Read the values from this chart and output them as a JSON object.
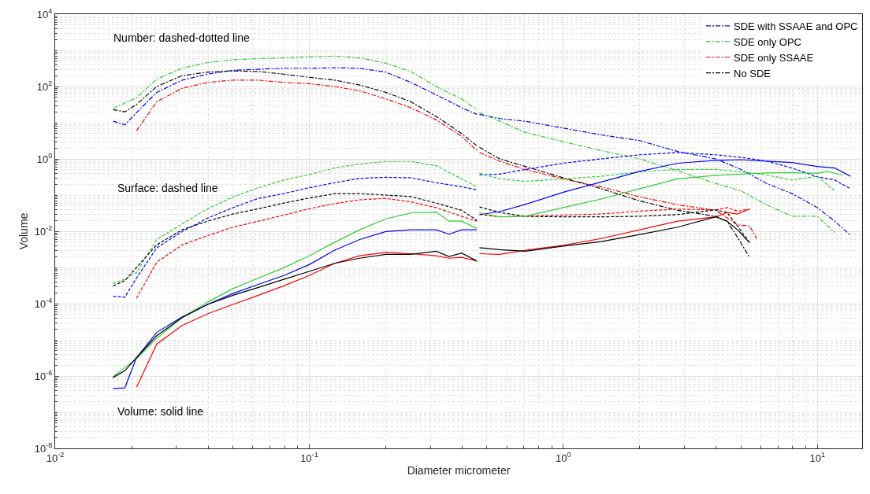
{
  "chart_data": {
    "type": "line",
    "xlabel": "Diameter micrometer",
    "ylabel": "Volume",
    "log": "xy",
    "grid": true,
    "legend": "top right",
    "xlim": [
      0.01,
      15
    ],
    "xticks": [
      {
        "value": 0.01,
        "label": "10$^{-2}$"
      },
      {
        "value": 0.1,
        "label": "10$^{-1}$"
      },
      {
        "value": 1,
        "label": "10$^{0}$"
      },
      {
        "value": 10,
        "label": "10$^{1}$"
      }
    ],
    "ylim": [
      1e-08,
      10000
    ],
    "yticks": [
      {
        "value": 1e-08,
        "label": "10$^{-8}$"
      },
      {
        "value": 1e-06,
        "label": "10$^{-6}$"
      },
      {
        "value": 0.0001,
        "label": "10$^{-4}$"
      },
      {
        "value": 0.01,
        "label": "10$^{-2}$"
      },
      {
        "value": 1,
        "label": "10$^{0}$"
      },
      {
        "value": 100,
        "label": "10$^{2}$"
      },
      {
        "value": 10000,
        "label": "10$^{4}$"
      }
    ],
    "annotations": [
      "Number: dashed-dotted line",
      "Surface: dashed line",
      "Volume: solid line"
    ],
    "series": [
      {
        "name": "SDE with SSAAE and OPC",
        "color": "#0000ff",
        "line_style": "dashdot",
        "x": [
          0.0169,
          0.0188,
          0.0209,
          0.0251,
          0.0316,
          0.0398,
          0.0501,
          0.0631,
          0.0794,
          0.1,
          0.126,
          0.158,
          0.2,
          0.251,
          0.316,
          0.398,
          0.457,
          null,
          0.468,
          0.562,
          0.708,
          1,
          1.41,
          2,
          2.82,
          3.98,
          5.01,
          6.31,
          7.94,
          10,
          11.7,
          13.5
        ],
        "values": [
          11,
          8.7,
          19,
          69,
          150,
          220,
          280,
          300,
          320,
          320,
          330,
          320,
          250,
          130,
          59,
          26,
          17,
          null,
          17,
          13,
          11,
          7.1,
          4.6,
          3.2,
          1.6,
          1.0,
          0.51,
          0.21,
          0.11,
          0.045,
          0.019,
          0.0078
        ]
      },
      {
        "name": "SDE only OPC",
        "color": "#33cc33",
        "line_style": "dashdot",
        "x": [
          0.0169,
          0.0188,
          0.0209,
          0.0251,
          0.0316,
          0.0398,
          0.0501,
          0.0631,
          0.0794,
          0.1,
          0.126,
          0.158,
          0.2,
          0.251,
          0.316,
          0.398,
          0.457,
          null,
          0.468,
          0.562,
          0.708,
          1,
          1.41,
          2,
          2.82,
          3.98,
          5.01,
          6.31,
          7.94,
          10,
          11.7
        ],
        "values": [
          25,
          35,
          49,
          160,
          320,
          460,
          550,
          590,
          620,
          660,
          690,
          620,
          440,
          260,
          100,
          45,
          23,
          null,
          19,
          11,
          5.4,
          3.0,
          1.7,
          1.0,
          0.47,
          0.21,
          0.13,
          0.054,
          0.026,
          0.026,
          0.0093
        ]
      },
      {
        "name": "SDE only SSAAE",
        "color": "#ff0000",
        "line_style": "dashdot",
        "x": [
          0.0209,
          0.0251,
          0.0316,
          0.0398,
          0.0501,
          0.0631,
          0.0794,
          0.1,
          0.126,
          0.158,
          0.2,
          0.251,
          0.316,
          0.398,
          0.457,
          null,
          0.468,
          0.562,
          0.708,
          1,
          1.41,
          2,
          2.82,
          3.98,
          4.85,
          5.41,
          5.78
        ],
        "values": [
          6.0,
          38,
          89,
          130,
          150,
          150,
          130,
          120,
          100,
          76,
          46,
          26,
          12,
          4.2,
          1.7,
          null,
          1.5,
          0.87,
          0.51,
          0.28,
          0.17,
          0.089,
          0.054,
          0.038,
          0.015,
          0.014,
          0.0063
        ]
      },
      {
        "name": "No SDE",
        "color": "#000000",
        "line_style": "dashdot",
        "x": [
          0.0169,
          0.0188,
          0.0209,
          0.0251,
          0.0316,
          0.0398,
          0.0501,
          0.0631,
          0.0794,
          0.1,
          0.126,
          0.158,
          0.2,
          0.251,
          0.316,
          0.398,
          0.457,
          null,
          0.468,
          0.562,
          0.708,
          1,
          1.41,
          2,
          2.82,
          3.98,
          4.41,
          4.85,
          5.41
        ],
        "values": [
          23,
          20,
          32,
          100,
          200,
          250,
          270,
          260,
          220,
          180,
          150,
          110,
          69,
          38,
          15,
          5.0,
          2.3,
          null,
          2.1,
          1.0,
          0.62,
          0.3,
          0.15,
          0.069,
          0.038,
          0.026,
          0.019,
          0.0068,
          0.0019
        ]
      },
      {
        "color": "#0000ff",
        "line_style": "dashed",
        "x": [
          0.0169,
          0.0188,
          0.0209,
          0.0251,
          0.0316,
          0.0398,
          0.0501,
          0.0631,
          0.0794,
          0.1,
          0.126,
          0.158,
          0.2,
          0.251,
          0.316,
          0.398,
          0.457,
          null,
          0.468,
          0.562,
          0.708,
          1,
          1.41,
          2,
          2.82,
          3.98,
          5.01,
          6.31,
          7.94,
          10,
          11.7,
          13.5
        ],
        "values": [
          0.00016,
          0.00015,
          0.00051,
          0.0035,
          0.0098,
          0.023,
          0.045,
          0.081,
          0.11,
          0.16,
          0.22,
          0.29,
          0.31,
          0.3,
          0.22,
          0.17,
          0.14,
          null,
          0.36,
          0.38,
          0.51,
          0.76,
          1.0,
          1.3,
          1.5,
          1.3,
          1.1,
          0.87,
          0.56,
          0.32,
          0.26,
          0.15
        ]
      },
      {
        "color": "#33cc33",
        "line_style": "dashed",
        "x": [
          0.0169,
          0.0188,
          0.0209,
          0.0251,
          0.0316,
          0.0398,
          0.0501,
          0.0631,
          0.0794,
          0.1,
          0.126,
          0.158,
          0.2,
          0.251,
          0.316,
          0.398,
          0.457,
          null,
          0.468,
          0.562,
          0.708,
          1,
          1.41,
          2,
          2.82,
          3.98,
          5.01,
          6.31,
          7.94,
          10,
          11.7
        ],
        "values": [
          0.00036,
          0.00047,
          0.00072,
          0.0059,
          0.016,
          0.042,
          0.089,
          0.16,
          0.26,
          0.37,
          0.56,
          0.72,
          0.85,
          0.85,
          0.65,
          0.28,
          0.17,
          null,
          0.4,
          0.28,
          0.24,
          0.28,
          0.33,
          0.44,
          0.51,
          0.51,
          0.44,
          0.36,
          0.26,
          0.33,
          0.13
        ]
      },
      {
        "color": "#ff0000",
        "line_style": "dashed",
        "x": [
          0.0209,
          0.0251,
          0.0316,
          0.0398,
          0.0501,
          0.0631,
          0.0794,
          0.1,
          0.126,
          0.158,
          0.2,
          0.251,
          0.316,
          0.398,
          0.457,
          null,
          0.468,
          0.562,
          0.708,
          1,
          1.41,
          2,
          2.82,
          3.98,
          4.41,
          4.85,
          5.41
        ],
        "values": [
          0.00014,
          0.0014,
          0.0042,
          0.0076,
          0.013,
          0.019,
          0.028,
          0.042,
          0.058,
          0.074,
          0.081,
          0.065,
          0.045,
          0.026,
          0.019,
          null,
          0.029,
          0.025,
          0.026,
          0.028,
          0.03,
          0.036,
          0.041,
          0.039,
          0.045,
          0.036,
          0.041
        ]
      },
      {
        "color": "#000000",
        "line_style": "dashed",
        "x": [
          0.0169,
          0.0188,
          0.0209,
          0.0251,
          0.0316,
          0.0398,
          0.0501,
          0.0631,
          0.0794,
          0.1,
          0.126,
          0.158,
          0.2,
          0.251,
          0.316,
          0.398,
          0.457,
          null,
          0.468,
          0.562,
          0.708,
          1,
          1.41,
          2,
          2.82,
          3.98,
          4.41,
          4.85,
          5.41
        ],
        "values": [
          0.00031,
          0.00043,
          0.001,
          0.0042,
          0.011,
          0.019,
          0.03,
          0.042,
          0.06,
          0.083,
          0.11,
          0.11,
          0.1,
          0.091,
          0.06,
          0.038,
          0.02,
          null,
          0.047,
          0.033,
          0.026,
          0.025,
          0.025,
          0.026,
          0.029,
          0.039,
          0.033,
          0.014,
          0.0048
        ]
      },
      {
        "color": "#0000ff",
        "line_style": "solid",
        "x": [
          0.0169,
          0.0188,
          0.0209,
          0.0251,
          0.0316,
          0.0398,
          0.0501,
          0.0631,
          0.0794,
          0.1,
          0.126,
          0.158,
          0.2,
          0.251,
          0.316,
          0.355,
          0.398,
          0.457,
          null,
          0.468,
          0.562,
          0.708,
          1,
          1.41,
          2,
          2.82,
          3.98,
          5.01,
          6.31,
          7.94,
          10,
          11.7,
          13.5
        ],
        "values": [
          4.5e-07,
          4.7e-07,
          3.2e-06,
          1.6e-05,
          4.3e-05,
          9.5e-05,
          0.00019,
          0.00034,
          0.0006,
          0.0012,
          0.003,
          0.0059,
          0.0098,
          0.011,
          0.011,
          0.0083,
          0.011,
          0.011,
          null,
          0.029,
          0.035,
          0.055,
          0.12,
          0.23,
          0.45,
          0.76,
          0.91,
          0.95,
          0.87,
          0.79,
          0.62,
          0.56,
          0.33
        ]
      },
      {
        "color": "#33cc33",
        "line_style": "solid",
        "x": [
          0.0169,
          0.0188,
          0.0209,
          0.0251,
          0.0316,
          0.0398,
          0.0501,
          0.0631,
          0.0794,
          0.1,
          0.126,
          0.158,
          0.2,
          0.251,
          0.316,
          0.355,
          0.398,
          0.457,
          null,
          0.468,
          0.562,
          0.708,
          1,
          1.41,
          2,
          2.82,
          3.98,
          5.01,
          6.31,
          7.94,
          10,
          11,
          12.6
        ],
        "values": [
          9.5e-07,
          1.7e-06,
          3e-06,
          1.1e-05,
          4.1e-05,
          0.00011,
          0.00026,
          0.00051,
          0.00098,
          0.0021,
          0.005,
          0.011,
          0.022,
          0.032,
          0.034,
          0.019,
          0.019,
          0.012,
          null,
          0.032,
          0.025,
          0.026,
          0.045,
          0.078,
          0.15,
          0.28,
          0.35,
          0.38,
          0.41,
          0.42,
          0.4,
          0.45,
          0.35
        ]
      },
      {
        "color": "#ff0000",
        "line_style": "solid",
        "x": [
          0.0209,
          0.0251,
          0.0316,
          0.0398,
          0.0501,
          0.0631,
          0.0794,
          0.1,
          0.126,
          0.158,
          0.2,
          0.251,
          0.316,
          0.355,
          0.398,
          0.457,
          null,
          0.468,
          0.562,
          0.708,
          1,
          1.41,
          2,
          2.82,
          3.98,
          4.41,
          4.85,
          5.41
        ],
        "values": [
          4.9e-07,
          7.6e-06,
          2.5e-05,
          5.2e-05,
          9.5e-05,
          0.00017,
          0.00031,
          0.0006,
          0.0013,
          0.0021,
          0.0026,
          0.0024,
          0.0021,
          0.0018,
          0.0019,
          0.0015,
          null,
          0.0024,
          0.0023,
          0.003,
          0.0041,
          0.0063,
          0.011,
          0.019,
          0.025,
          0.033,
          0.03,
          0.041
        ]
      },
      {
        "color": "#000000",
        "line_style": "solid",
        "x": [
          0.0169,
          0.0188,
          0.0209,
          0.0251,
          0.0316,
          0.0398,
          0.0501,
          0.0631,
          0.0794,
          0.1,
          0.126,
          0.158,
          0.2,
          0.251,
          0.316,
          0.355,
          0.398,
          0.457,
          null,
          0.468,
          0.562,
          0.708,
          1,
          1.41,
          2,
          2.82,
          3.98,
          4.41,
          4.85,
          5.41
        ],
        "values": [
          9.1e-07,
          1.4e-06,
          3.2e-06,
          1.3e-05,
          4.1e-05,
          9.5e-05,
          0.00017,
          0.00028,
          0.00047,
          0.00078,
          0.0013,
          0.0018,
          0.0023,
          0.0023,
          0.0028,
          0.002,
          0.0025,
          0.0015,
          null,
          0.0035,
          0.0031,
          0.0028,
          0.0039,
          0.0052,
          0.0081,
          0.013,
          0.025,
          0.019,
          0.011,
          0.0048
        ]
      }
    ]
  }
}
